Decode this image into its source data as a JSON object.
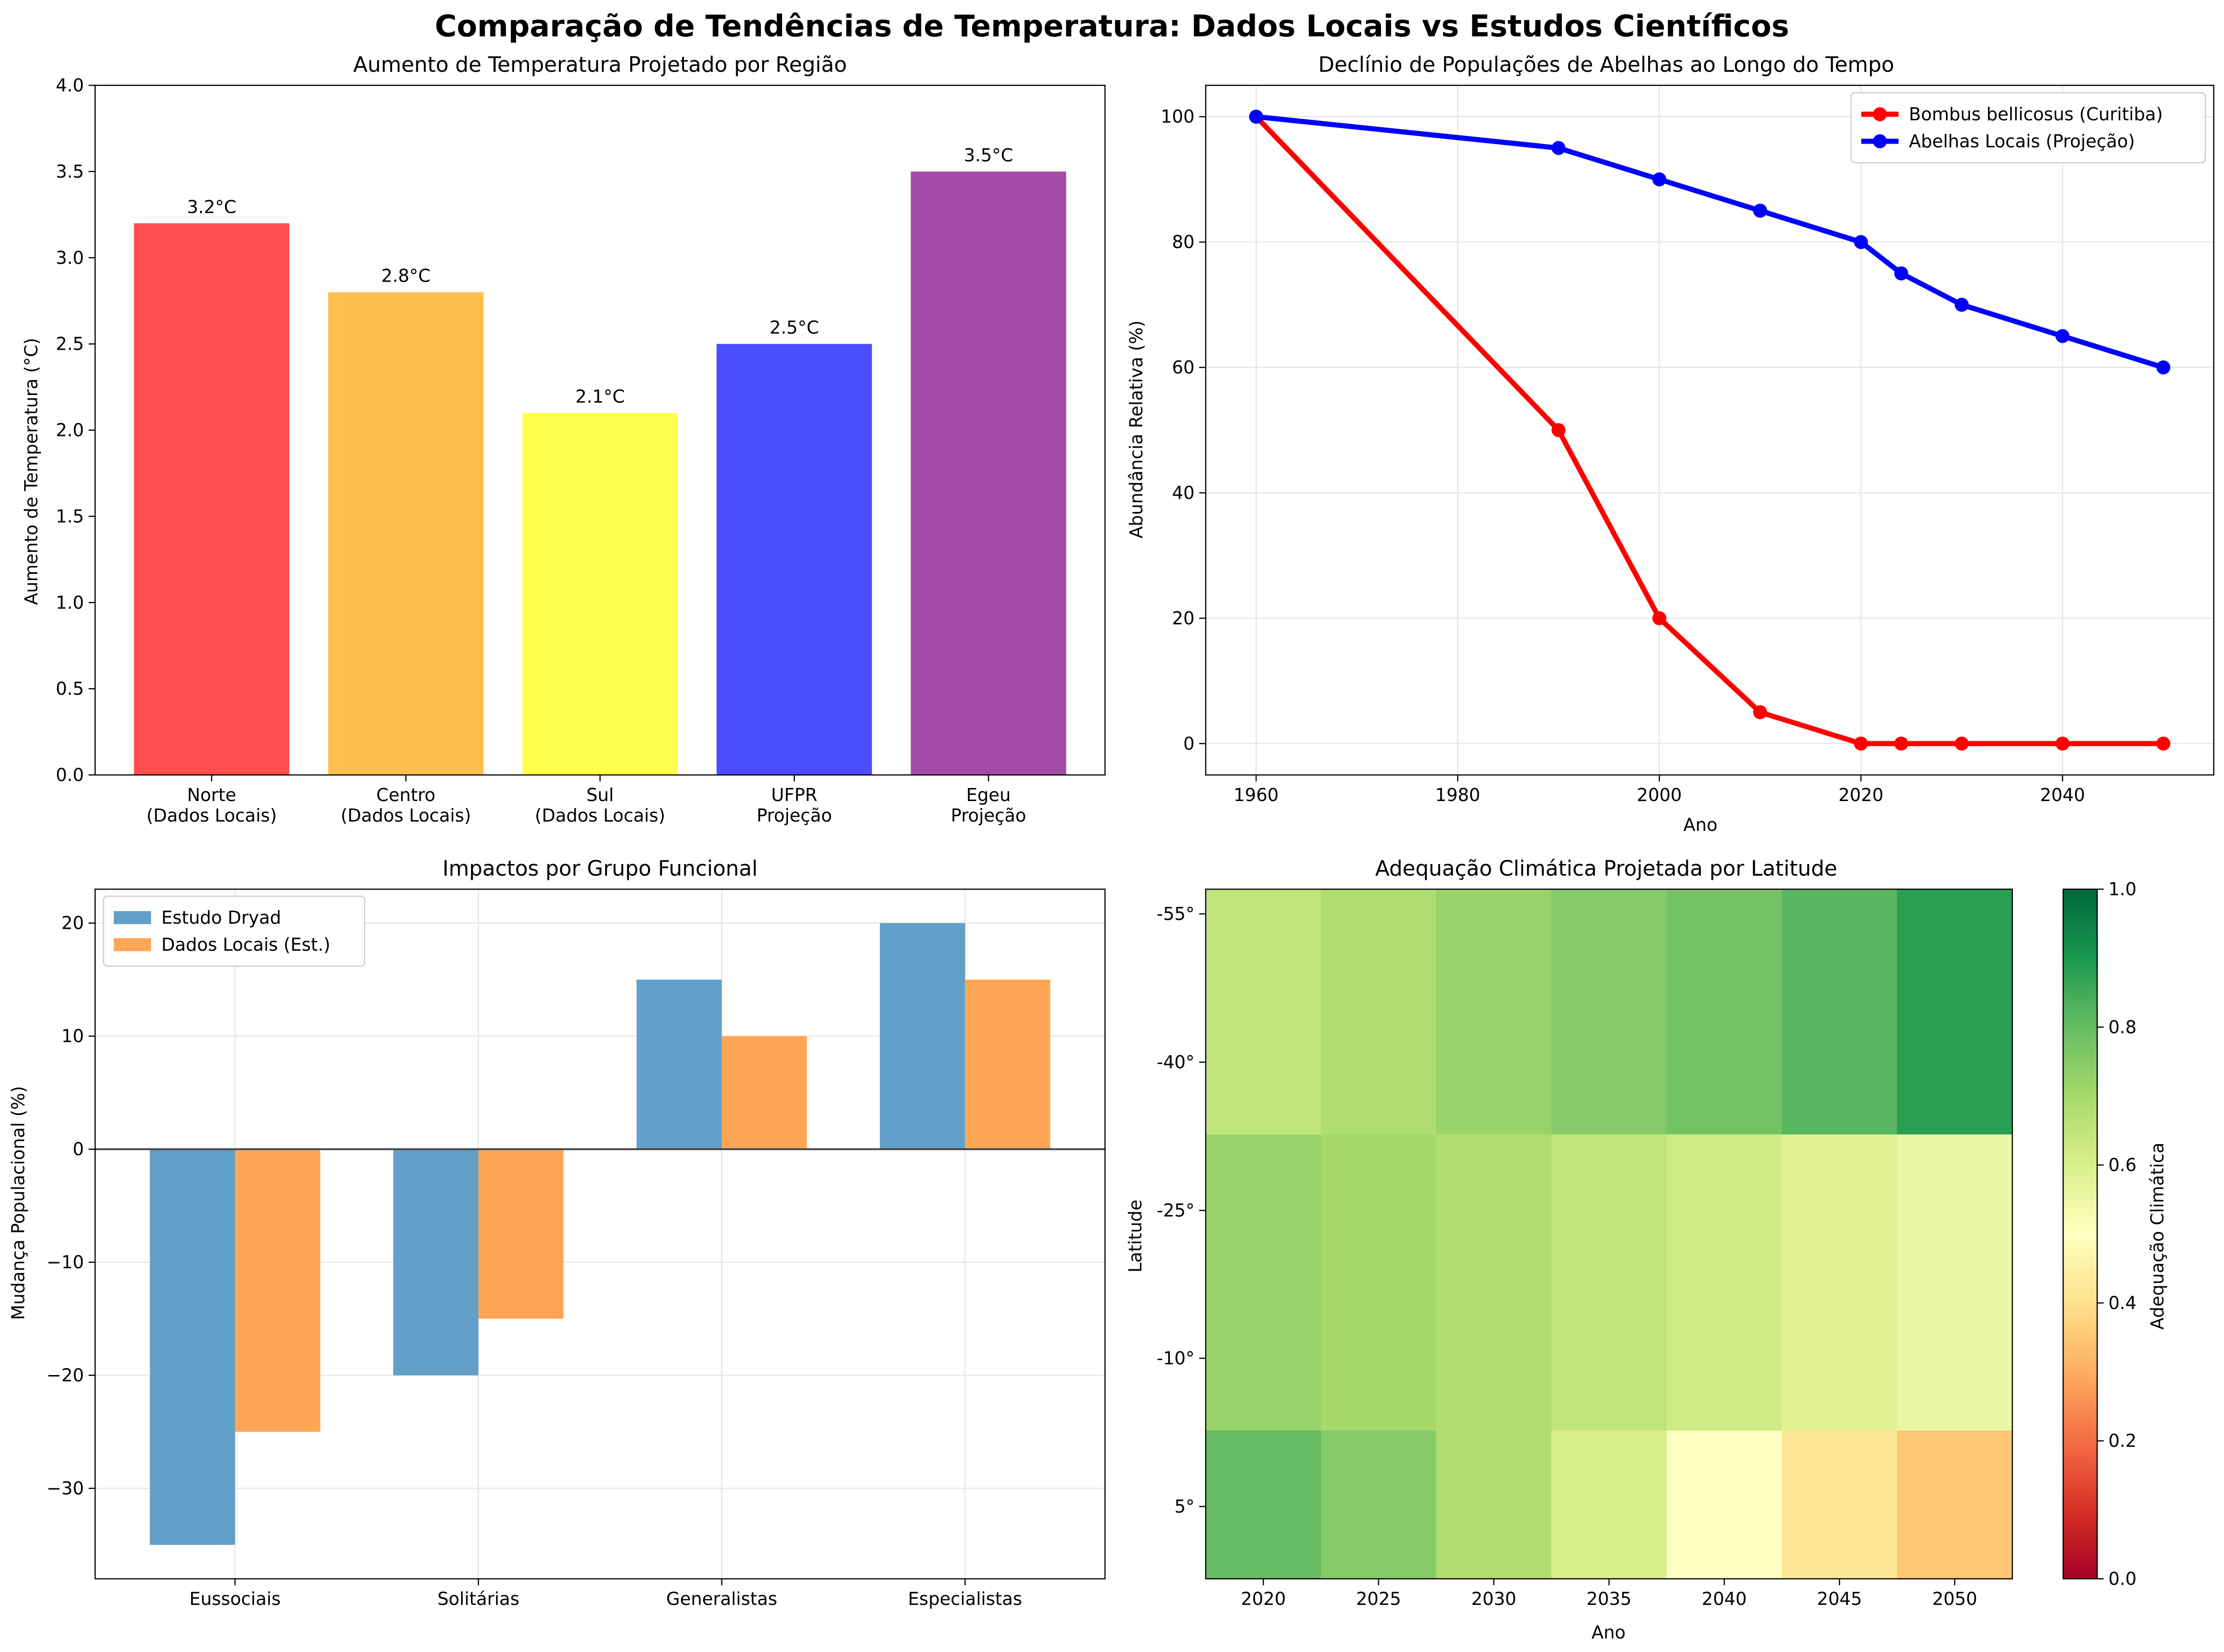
{
  "suptitle": "Comparação de Tendências de Temperatura: Dados Locais vs Estudos Científicos",
  "chart_data": [
    {
      "type": "bar",
      "title": "Aumento de Temperatura Projetado por Região",
      "xlabel": "",
      "ylabel": "Aumento de Temperatura (°C)",
      "categories": [
        "Norte\n(Dados Locais)",
        "Centro\n(Dados Locais)",
        "Sul\n(Dados Locais)",
        "UFPR\nProjeção",
        "Egeu\nProjeção"
      ],
      "values": [
        3.2,
        2.8,
        2.1,
        2.5,
        3.5
      ],
      "value_labels": [
        "3.2°C",
        "2.8°C",
        "2.1°C",
        "2.5°C",
        "3.5°C"
      ],
      "colors": [
        "#ff4c4c",
        "#ffbf4f",
        "#ffff4c",
        "#4c4cff",
        "#a34ca7"
      ],
      "ylim": [
        0,
        4.0
      ],
      "yticks": [
        0.0,
        0.5,
        1.0,
        1.5,
        2.0,
        2.5,
        3.0,
        3.5,
        4.0
      ],
      "grid": false
    },
    {
      "type": "line",
      "title": "Declínio de Populações de Abelhas ao Longo do Tempo",
      "xlabel": "Ano",
      "ylabel": "Abundância Relativa (%)",
      "xlim": [
        1955,
        2055
      ],
      "ylim": [
        -5,
        105
      ],
      "xticks": [
        1960,
        1980,
        2000,
        2020,
        2040
      ],
      "yticks": [
        0,
        20,
        40,
        60,
        80,
        100
      ],
      "grid": true,
      "legend_position": "top-right",
      "series": [
        {
          "name": "Bombus bellicosus (Curitiba)",
          "color": "#ff0000",
          "x": [
            1960,
            1990,
            2000,
            2010,
            2020,
            2024,
            2030,
            2040,
            2050
          ],
          "y": [
            100,
            50,
            20,
            5,
            0,
            0,
            0,
            0,
            0
          ]
        },
        {
          "name": "Abelhas Locais (Projeção)",
          "color": "#0000ff",
          "x": [
            1960,
            1990,
            2000,
            2010,
            2020,
            2024,
            2030,
            2040,
            2050
          ],
          "y": [
            100,
            95,
            90,
            85,
            80,
            75,
            70,
            65,
            60
          ]
        }
      ]
    },
    {
      "type": "bar",
      "title": "Impactos por Grupo Funcional",
      "xlabel": "",
      "ylabel": "Mudança Populacional (%)",
      "categories": [
        "Eussociais",
        "Solitárias",
        "Generalistas",
        "Especialistas"
      ],
      "ylim": [
        -38,
        23
      ],
      "yticks": [
        -30,
        -20,
        -10,
        0,
        10,
        20
      ],
      "grid": true,
      "legend_position": "top-left",
      "series": [
        {
          "name": "Estudo Dryad",
          "color": "#62a0ca",
          "values": [
            -35,
            -20,
            15,
            20
          ]
        },
        {
          "name": "Dados Locais (Est.)",
          "color": "#ffa656",
          "values": [
            -25,
            -15,
            10,
            15
          ]
        }
      ]
    },
    {
      "type": "heatmap",
      "title": "Adequação Climática Projetada por Latitude",
      "xlabel": "Ano",
      "ylabel": "Latitude",
      "x": [
        "2020",
        "2025",
        "2030",
        "2035",
        "2040",
        "2045",
        "2050"
      ],
      "y": [
        "-55°",
        "-40°",
        "-25°",
        "-10°",
        "5°"
      ],
      "row_groups": [
        {
          "rows": [
            "-55°",
            "-40°"
          ],
          "values": [
            0.65,
            0.68,
            0.72,
            0.75,
            0.78,
            0.82,
            0.88
          ]
        },
        {
          "rows": [
            "-25°",
            "-10°"
          ],
          "values": [
            0.72,
            0.7,
            0.68,
            0.65,
            0.62,
            0.58,
            0.55
          ]
        },
        {
          "rows": [
            "5°"
          ],
          "values": [
            0.8,
            0.75,
            0.68,
            0.6,
            0.5,
            0.42,
            0.35
          ]
        }
      ],
      "colorbar_label": "Adequação Climática",
      "colorbar_range": [
        0.0,
        1.0
      ],
      "colorbar_ticks": [
        "0.0",
        "0.2",
        "0.4",
        "0.6",
        "0.8",
        "1.0"
      ],
      "colormap": "RdYlGn"
    }
  ]
}
